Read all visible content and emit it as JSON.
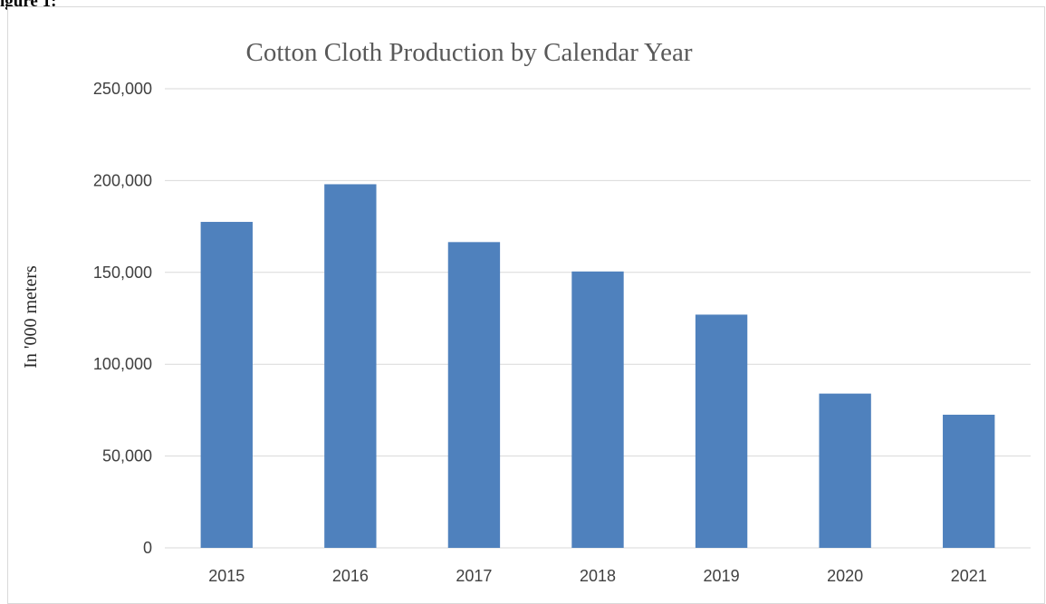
{
  "figure_label": "igure 1:",
  "chart_data": {
    "type": "bar",
    "title": "Cotton Cloth Production by Calendar Year",
    "xlabel": "",
    "ylabel": "In '000 meters",
    "categories": [
      "2015",
      "2016",
      "2017",
      "2018",
      "2019",
      "2020",
      "2021"
    ],
    "values": [
      177500,
      198000,
      166500,
      150500,
      127000,
      84000,
      72500
    ],
    "ylim": [
      0,
      250000
    ],
    "yticks": [
      0,
      50000,
      100000,
      150000,
      200000,
      250000
    ],
    "ytick_labels": [
      "0",
      "50,000",
      "100,000",
      "150,000",
      "200,000",
      "250,000"
    ],
    "grid": true,
    "legend": "none",
    "bar_color": "#4f81bd",
    "grid_color": "#d9d9d9"
  }
}
